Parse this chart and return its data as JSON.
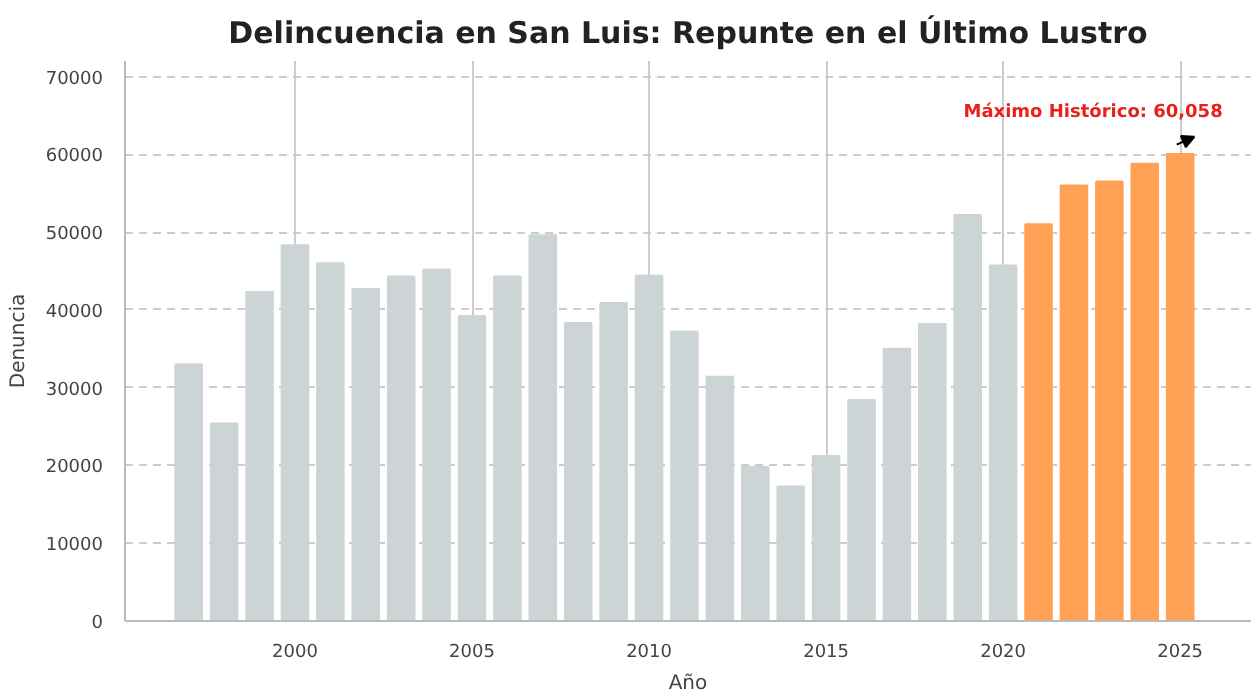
{
  "chart_data": {
    "type": "bar",
    "title": "Delincuencia en San Luis: Repunte en el Último Lustro",
    "xlabel": "Año",
    "ylabel": "Denuncia",
    "x": [
      1997,
      1998,
      1999,
      2000,
      2001,
      2002,
      2003,
      2004,
      2005,
      2006,
      2007,
      2008,
      2009,
      2010,
      2011,
      2012,
      2013,
      2014,
      2015,
      2016,
      2017,
      2018,
      2019,
      2020,
      2021,
      2022,
      2023,
      2024,
      2025
    ],
    "values": [
      33000,
      25400,
      42300,
      48300,
      46000,
      42700,
      44300,
      45200,
      39200,
      44300,
      49600,
      38300,
      40900,
      44400,
      37200,
      31400,
      19800,
      17300,
      21200,
      28400,
      35000,
      38200,
      52200,
      45700,
      51000,
      56000,
      56500,
      58800,
      60058
    ],
    "colors": [
      "#cdd4d6",
      "#cdd4d6",
      "#cdd4d6",
      "#cdd4d6",
      "#cdd4d6",
      "#cdd4d6",
      "#cdd4d6",
      "#cdd4d6",
      "#cdd4d6",
      "#cdd4d6",
      "#cdd4d6",
      "#cdd4d6",
      "#cdd4d6",
      "#cdd4d6",
      "#cdd4d6",
      "#cdd4d6",
      "#cdd4d6",
      "#cdd4d6",
      "#cdd4d6",
      "#cdd4d6",
      "#cdd4d6",
      "#cdd4d6",
      "#cdd4d6",
      "#cdd4d6",
      "#ffa255",
      "#ffa255",
      "#ffa255",
      "#ffa255",
      "#ffa255"
    ],
    "xlim": [
      1995.2,
      2027
    ],
    "xticks": [
      2000,
      2005,
      2010,
      2015,
      2020,
      2025
    ],
    "ylim": [
      0,
      72000
    ],
    "yticks": [
      0,
      10000,
      20000,
      30000,
      40000,
      50000,
      60000,
      70000
    ],
    "grid": true,
    "annotations": [
      {
        "text": "Máximo Histórico: 60,058",
        "x": 2025,
        "y": 60058
      }
    ]
  }
}
